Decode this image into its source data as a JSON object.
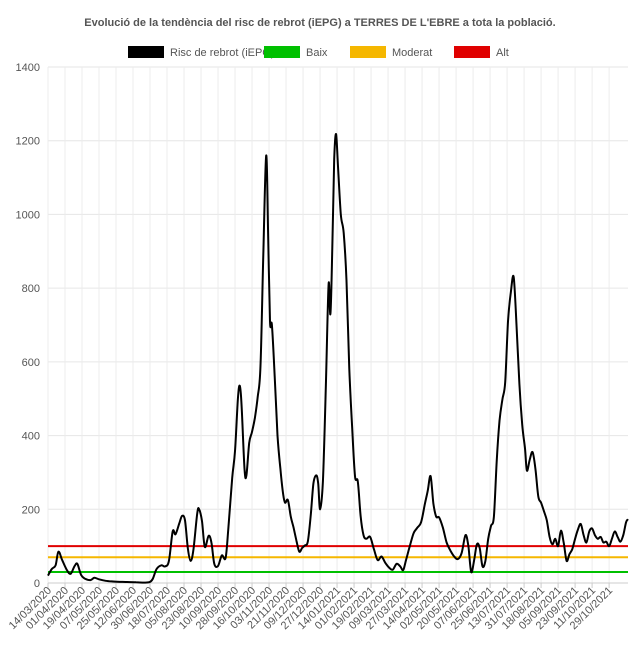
{
  "chart_data": {
    "type": "line",
    "title": "Evolució de la tendència del risc de rebrot (iEPG) a TERRES DE L'EBRE a tota la població.",
    "legend_placement": "top",
    "grid": true,
    "ylim": [
      0,
      1400
    ],
    "y_ticks": [
      "0",
      "200",
      "400",
      "600",
      "800",
      "1000",
      "1200",
      "1400"
    ],
    "x_tick_labels": [
      "14/03/2020",
      "01/04/2020",
      "19/04/2020",
      "07/05/2020",
      "25/05/2020",
      "12/06/2020",
      "30/06/2020",
      "18/07/2020",
      "05/08/2020",
      "23/08/2020",
      "10/09/2020",
      "28/09/2020",
      "16/10/2020",
      "03/11/2020",
      "21/11/2020",
      "09/12/2020",
      "27/12/2020",
      "14/01/2021",
      "01/02/2021",
      "19/02/2021",
      "09/03/2021",
      "27/03/2021",
      "14/04/2021",
      "02/05/2021",
      "20/05/2021",
      "07/06/2021",
      "25/06/2021",
      "13/07/2021",
      "31/07/2021",
      "18/08/2021",
      "05/09/2021",
      "23/09/2021",
      "11/10/2021",
      "29/10/2021"
    ],
    "x_start": "2020-03-14",
    "x_end": "2021-11-18",
    "series": [
      {
        "name": "Risc de rebrot (iEPG)",
        "color": "#000000",
        "points": [
          [
            "2020-03-14",
            20
          ],
          [
            "2020-03-18",
            38
          ],
          [
            "2020-03-22",
            48
          ],
          [
            "2020-03-25",
            85
          ],
          [
            "2020-03-29",
            62
          ],
          [
            "2020-04-03",
            35
          ],
          [
            "2020-04-07",
            25
          ],
          [
            "2020-04-11",
            45
          ],
          [
            "2020-04-14",
            52
          ],
          [
            "2020-04-18",
            22
          ],
          [
            "2020-04-22",
            12
          ],
          [
            "2020-04-28",
            8
          ],
          [
            "2020-05-02",
            14
          ],
          [
            "2020-05-07",
            10
          ],
          [
            "2020-05-14",
            6
          ],
          [
            "2020-05-22",
            4
          ],
          [
            "2020-06-01",
            3
          ],
          [
            "2020-06-15",
            2
          ],
          [
            "2020-06-25",
            1
          ],
          [
            "2020-06-30",
            3
          ],
          [
            "2020-07-03",
            12
          ],
          [
            "2020-07-07",
            38
          ],
          [
            "2020-07-12",
            48
          ],
          [
            "2020-07-16",
            45
          ],
          [
            "2020-07-20",
            60
          ],
          [
            "2020-07-24",
            140
          ],
          [
            "2020-07-27",
            132
          ],
          [
            "2020-07-31",
            162
          ],
          [
            "2020-08-03",
            182
          ],
          [
            "2020-08-06",
            170
          ],
          [
            "2020-08-09",
            95
          ],
          [
            "2020-08-12",
            60
          ],
          [
            "2020-08-15",
            92
          ],
          [
            "2020-08-19",
            190
          ],
          [
            "2020-08-21",
            200
          ],
          [
            "2020-08-24",
            168
          ],
          [
            "2020-08-27",
            98
          ],
          [
            "2020-08-31",
            128
          ],
          [
            "2020-09-03",
            110
          ],
          [
            "2020-09-06",
            52
          ],
          [
            "2020-09-10",
            46
          ],
          [
            "2020-09-14",
            75
          ],
          [
            "2020-09-18",
            68
          ],
          [
            "2020-09-21",
            150
          ],
          [
            "2020-09-25",
            285
          ],
          [
            "2020-09-28",
            358
          ],
          [
            "2020-10-01",
            500
          ],
          [
            "2020-10-03",
            535
          ],
          [
            "2020-10-05",
            480
          ],
          [
            "2020-10-08",
            310
          ],
          [
            "2020-10-10",
            292
          ],
          [
            "2020-10-13",
            380
          ],
          [
            "2020-10-16",
            410
          ],
          [
            "2020-10-19",
            448
          ],
          [
            "2020-10-22",
            505
          ],
          [
            "2020-10-25",
            590
          ],
          [
            "2020-10-28",
            900
          ],
          [
            "2020-10-31",
            1160
          ],
          [
            "2020-11-02",
            950
          ],
          [
            "2020-11-04",
            710
          ],
          [
            "2020-11-06",
            700
          ],
          [
            "2020-11-09",
            560
          ],
          [
            "2020-11-12",
            400
          ],
          [
            "2020-11-15",
            310
          ],
          [
            "2020-11-18",
            240
          ],
          [
            "2020-11-20",
            218
          ],
          [
            "2020-11-23",
            225
          ],
          [
            "2020-11-26",
            180
          ],
          [
            "2020-11-29",
            150
          ],
          [
            "2020-12-02",
            115
          ],
          [
            "2020-12-05",
            85
          ],
          [
            "2020-12-08",
            95
          ],
          [
            "2020-12-11",
            102
          ],
          [
            "2020-12-14",
            112
          ],
          [
            "2020-12-17",
            180
          ],
          [
            "2020-12-20",
            270
          ],
          [
            "2020-12-23",
            292
          ],
          [
            "2020-12-25",
            270
          ],
          [
            "2020-12-27",
            200
          ],
          [
            "2020-12-30",
            275
          ],
          [
            "2021-01-02",
            520
          ],
          [
            "2021-01-05",
            810
          ],
          [
            "2021-01-07",
            730
          ],
          [
            "2021-01-09",
            910
          ],
          [
            "2021-01-11",
            1150
          ],
          [
            "2021-01-13",
            1218
          ],
          [
            "2021-01-15",
            1130
          ],
          [
            "2021-01-18",
            1000
          ],
          [
            "2021-01-21",
            950
          ],
          [
            "2021-01-24",
            820
          ],
          [
            "2021-01-27",
            580
          ],
          [
            "2021-01-30",
            420
          ],
          [
            "2021-02-02",
            290
          ],
          [
            "2021-02-05",
            275
          ],
          [
            "2021-02-08",
            180
          ],
          [
            "2021-02-11",
            130
          ],
          [
            "2021-02-14",
            120
          ],
          [
            "2021-02-18",
            125
          ],
          [
            "2021-02-22",
            92
          ],
          [
            "2021-02-26",
            62
          ],
          [
            "2021-03-02",
            72
          ],
          [
            "2021-03-06",
            55
          ],
          [
            "2021-03-10",
            42
          ],
          [
            "2021-03-14",
            36
          ],
          [
            "2021-03-18",
            52
          ],
          [
            "2021-03-22",
            45
          ],
          [
            "2021-03-25",
            35
          ],
          [
            "2021-03-28",
            62
          ],
          [
            "2021-04-01",
            100
          ],
          [
            "2021-04-05",
            135
          ],
          [
            "2021-04-09",
            150
          ],
          [
            "2021-04-13",
            165
          ],
          [
            "2021-04-17",
            215
          ],
          [
            "2021-04-20",
            250
          ],
          [
            "2021-04-23",
            290
          ],
          [
            "2021-04-26",
            215
          ],
          [
            "2021-04-29",
            180
          ],
          [
            "2021-05-02",
            178
          ],
          [
            "2021-05-06",
            150
          ],
          [
            "2021-05-10",
            110
          ],
          [
            "2021-05-14",
            88
          ],
          [
            "2021-05-18",
            72
          ],
          [
            "2021-05-22",
            65
          ],
          [
            "2021-05-26",
            82
          ],
          [
            "2021-05-30",
            130
          ],
          [
            "2021-06-02",
            100
          ],
          [
            "2021-06-05",
            30
          ],
          [
            "2021-06-08",
            60
          ],
          [
            "2021-06-11",
            105
          ],
          [
            "2021-06-14",
            95
          ],
          [
            "2021-06-17",
            45
          ],
          [
            "2021-06-20",
            60
          ],
          [
            "2021-06-23",
            120
          ],
          [
            "2021-06-26",
            155
          ],
          [
            "2021-06-29",
            180
          ],
          [
            "2021-07-02",
            330
          ],
          [
            "2021-07-05",
            440
          ],
          [
            "2021-07-08",
            498
          ],
          [
            "2021-07-11",
            545
          ],
          [
            "2021-07-14",
            710
          ],
          [
            "2021-07-17",
            790
          ],
          [
            "2021-07-20",
            830
          ],
          [
            "2021-07-23",
            700
          ],
          [
            "2021-07-26",
            540
          ],
          [
            "2021-07-29",
            430
          ],
          [
            "2021-08-01",
            365
          ],
          [
            "2021-08-03",
            305
          ],
          [
            "2021-08-06",
            335
          ],
          [
            "2021-08-09",
            355
          ],
          [
            "2021-08-12",
            310
          ],
          [
            "2021-08-15",
            235
          ],
          [
            "2021-08-18",
            218
          ],
          [
            "2021-08-21",
            195
          ],
          [
            "2021-08-24",
            170
          ],
          [
            "2021-08-27",
            125
          ],
          [
            "2021-08-30",
            105
          ],
          [
            "2021-09-02",
            120
          ],
          [
            "2021-09-05",
            100
          ],
          [
            "2021-09-08",
            142
          ],
          [
            "2021-09-11",
            108
          ],
          [
            "2021-09-14",
            60
          ],
          [
            "2021-09-17",
            78
          ],
          [
            "2021-09-20",
            92
          ],
          [
            "2021-09-23",
            120
          ],
          [
            "2021-09-26",
            145
          ],
          [
            "2021-09-29",
            160
          ],
          [
            "2021-10-02",
            130
          ],
          [
            "2021-10-05",
            110
          ],
          [
            "2021-10-08",
            140
          ],
          [
            "2021-10-11",
            148
          ],
          [
            "2021-10-14",
            130
          ],
          [
            "2021-10-17",
            120
          ],
          [
            "2021-10-20",
            125
          ],
          [
            "2021-10-23",
            110
          ],
          [
            "2021-10-26",
            112
          ],
          [
            "2021-10-29",
            100
          ],
          [
            "2021-11-01",
            120
          ],
          [
            "2021-11-04",
            140
          ],
          [
            "2021-11-07",
            125
          ],
          [
            "2021-11-10",
            112
          ],
          [
            "2021-11-13",
            130
          ],
          [
            "2021-11-16",
            165
          ],
          [
            "2021-11-18",
            173
          ]
        ]
      },
      {
        "name": "Baix",
        "color": "#00c000",
        "constant": 30
      },
      {
        "name": "Moderat",
        "color": "#f5b700",
        "constant": 70
      },
      {
        "name": "Alt",
        "color": "#e00000",
        "constant": 100
      }
    ]
  }
}
